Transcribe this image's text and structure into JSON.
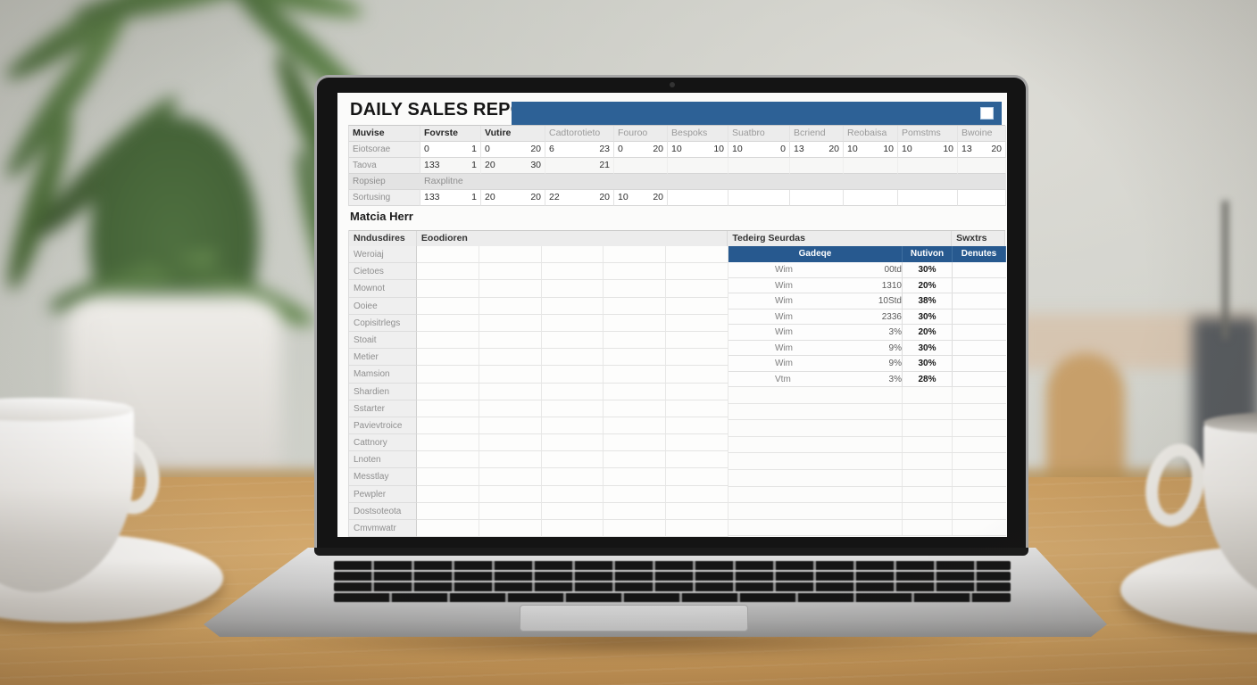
{
  "screen": {
    "title": "DAILY SALES REPORT",
    "colors": {
      "accent_blue": "#2d6196",
      "subheader_blue": "#27598f",
      "header_gray": "#ececec"
    },
    "titlebar": {
      "button": "maximize"
    },
    "table1": {
      "columns": [
        "Muvise",
        "Fovrste",
        "Vutire",
        "Cadtorotieto",
        "Fouroo",
        "Bespoks",
        "Suatbro",
        "Bcriend",
        "Reobaisa",
        "Pomstms",
        "Bwoine"
      ],
      "rows": [
        {
          "label": "Eiotsorae",
          "type": "data",
          "cells": [
            [
              "0",
              "1"
            ],
            [
              "0",
              "20"
            ],
            [
              "6",
              "23"
            ],
            [
              "0",
              "20"
            ],
            [
              "10",
              "10"
            ],
            [
              "10",
              "0"
            ],
            [
              "13",
              "20"
            ],
            [
              "10",
              "10"
            ],
            [
              "10",
              "10"
            ],
            [
              "13",
              "20"
            ]
          ]
        },
        {
          "label": "Taova",
          "type": "data",
          "cells": [
            [
              "133",
              "1"
            ],
            [
              "20",
              "30"
            ],
            [
              "",
              "21"
            ],
            [
              "",
              ""
            ],
            [
              "",
              ""
            ],
            [
              "",
              ""
            ],
            [
              "",
              ""
            ],
            [
              "",
              ""
            ],
            [
              "",
              ""
            ],
            [
              "",
              ""
            ]
          ]
        },
        {
          "label": "Ropsiep",
          "type": "span",
          "text": "Raxplitne"
        },
        {
          "label": "Sortusing",
          "type": "data",
          "cells": [
            [
              "133",
              "1"
            ],
            [
              "20",
              "20"
            ],
            [
              "22",
              "20"
            ],
            [
              "10",
              "20"
            ],
            [
              "",
              ""
            ],
            [
              "",
              ""
            ],
            [
              "",
              ""
            ],
            [
              "",
              ""
            ],
            [
              "",
              ""
            ],
            [
              "",
              ""
            ]
          ]
        }
      ]
    },
    "section_title": "Matcia Herr",
    "table2": {
      "corner_header": "Nndusdires",
      "span_header": "Eoodioren",
      "right_header": "Tedeirg Seurdas",
      "last_header": "Swxtrs",
      "subheaders": [
        "Gadeqe",
        "Nutivon",
        "Denutes"
      ],
      "row_labels": [
        "Weroiaj",
        "Cietoes",
        "Mownot",
        "Ooiee",
        "Copisitrlegs",
        "Stoait",
        "Metier",
        "Mamsion",
        "Shardien",
        "Sstarter",
        "Pavievtroice",
        "Cattnory",
        "Lnoten",
        "Messtlay",
        "Pewpler",
        "Dostsoteota",
        "Cmvmwatr"
      ],
      "data_rows": [
        {
          "name": "Wim",
          "value": "00td",
          "pct": "30%"
        },
        {
          "name": "Wim",
          "value": "1310",
          "pct": "20%"
        },
        {
          "name": "Wim",
          "value": "10Std",
          "pct": "38%"
        },
        {
          "name": "Wim",
          "value": "2336",
          "pct": "30%"
        },
        {
          "name": "Wim",
          "value": "3%",
          "pct": "20%"
        },
        {
          "name": "Wim",
          "value": "9%",
          "pct": "30%"
        },
        {
          "name": "Wim",
          "value": "9%",
          "pct": "30%"
        },
        {
          "name": "Vtm",
          "value": "3%",
          "pct": "28%"
        }
      ]
    }
  },
  "scene": {
    "desk_wood_color": "#cda268",
    "wall_color": "#cbcdc6",
    "plant_color": "#57784a",
    "laptop_color": "#c7c7c7",
    "cup_color": "#f3f1ee"
  }
}
